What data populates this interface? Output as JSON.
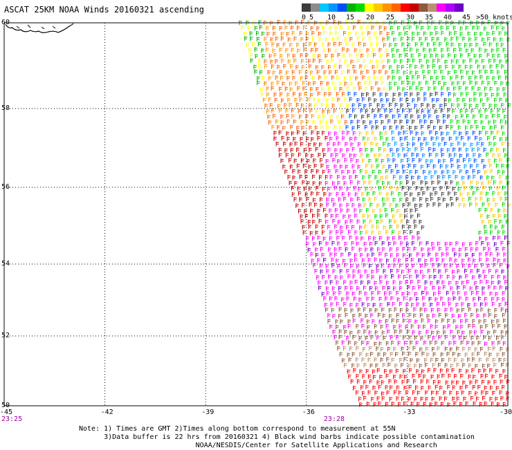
{
  "header": {
    "title": "ASCAT 25KM NOAA Winds 20160321 ascending"
  },
  "legend": {
    "colors": [
      "#3c3c3c",
      "#8c8c8c",
      "#00c8ff",
      "#0096ff",
      "#0050ff",
      "#00b400",
      "#00dc00",
      "#ffff00",
      "#ffc800",
      "#ff9600",
      "#ff6400",
      "#ff0000",
      "#c80000",
      "#8c5a3c",
      "#bc8f6f",
      "#ff00ff",
      "#b400ff",
      "#6e00c8"
    ],
    "labels": [
      "0",
      "5",
      "10",
      "15",
      "20",
      "25",
      "30",
      "35",
      "40",
      "45",
      ">50 knots"
    ],
    "label_offsets": [
      0,
      11,
      37,
      64,
      93,
      122,
      151,
      178,
      205,
      232,
      252
    ]
  },
  "map": {
    "lat_labels": [
      "60",
      "58",
      "56",
      "54",
      "52",
      "50"
    ],
    "lat_values": [
      60,
      58,
      56,
      54,
      52,
      50
    ],
    "lon_labels": [
      "-45",
      "-42",
      "-39",
      "-36",
      "-33",
      "-30"
    ],
    "lon_values": [
      -45,
      -42,
      -39,
      -36,
      -33,
      -30
    ],
    "time_labels": [
      {
        "text": "23:25",
        "lon": -45
      },
      {
        "text": "23:28",
        "lon": -35.4
      }
    ],
    "time_color": "#a000a0"
  },
  "notes": {
    "line1": "Note: 1) Times are GMT 2)Times along bottom correspond to measurement at 55N",
    "line2": "      3)Data buffer is 22 hrs from 20160321 4) Black wind barbs indicate possible contamination",
    "line3": "                            NOAA/NESDIS/Center for Satellite Applications and Research"
  }
}
